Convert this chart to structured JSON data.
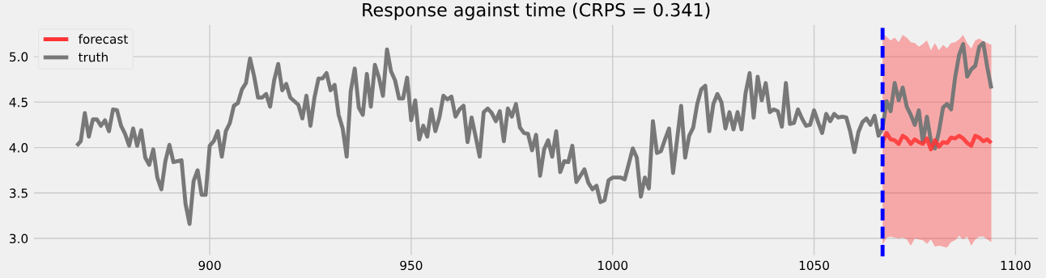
{
  "chart_data": {
    "type": "line",
    "title": "Response against time (CRPS = 0.341)",
    "series": [
      {
        "name": "forecast",
        "color": "#ff3333",
        "x": [
          1067,
          1068,
          1069,
          1070,
          1071,
          1072,
          1073,
          1074,
          1075,
          1076,
          1077,
          1078,
          1079,
          1080,
          1081,
          1082,
          1083,
          1084,
          1085,
          1086,
          1087,
          1088,
          1089,
          1090,
          1091,
          1092,
          1093,
          1094
        ],
        "values": [
          4.06,
          4.16,
          4.09,
          4.08,
          4.04,
          4.13,
          4.1,
          4.04,
          4.09,
          4.06,
          4.04,
          4.1,
          3.98,
          4.08,
          4.01,
          4.06,
          4.05,
          4.11,
          4.1,
          4.13,
          4.1,
          4.05,
          4.02,
          4.13,
          4.11,
          4.07,
          4.09,
          4.05
        ],
        "upper": [
          5.26,
          5.22,
          5.18,
          5.21,
          5.16,
          5.24,
          5.21,
          5.16,
          5.15,
          5.11,
          5.14,
          5.18,
          5.07,
          5.15,
          5.07,
          5.13,
          5.09,
          5.15,
          5.16,
          5.19,
          5.24,
          5.15,
          5.09,
          5.18,
          5.2,
          5.17,
          5.15,
          5.13
        ],
        "lower": [
          2.93,
          3.01,
          3.02,
          3.01,
          3.0,
          3.01,
          2.99,
          2.92,
          3.0,
          2.99,
          2.98,
          2.94,
          2.99,
          2.91,
          2.92,
          2.91,
          2.9,
          2.96,
          2.98,
          3.03,
          2.99,
          3.02,
          2.92,
          2.99,
          3.02,
          3.02,
          2.99,
          2.96
        ]
      },
      {
        "name": "truth",
        "color": "#787878",
        "x": [
          867,
          868,
          869,
          870,
          871,
          872,
          873,
          874,
          875,
          876,
          877,
          878,
          879,
          880,
          881,
          882,
          883,
          884,
          885,
          886,
          887,
          888,
          889,
          890,
          891,
          892,
          893,
          894,
          895,
          896,
          897,
          898,
          899,
          900,
          901,
          902,
          903,
          904,
          905,
          906,
          907,
          908,
          909,
          910,
          911,
          912,
          913,
          914,
          915,
          916,
          917,
          918,
          919,
          920,
          921,
          922,
          923,
          924,
          925,
          926,
          927,
          928,
          929,
          930,
          931,
          932,
          933,
          934,
          935,
          936,
          937,
          938,
          939,
          940,
          941,
          942,
          943,
          944,
          945,
          946,
          947,
          948,
          949,
          950,
          951,
          952,
          953,
          954,
          955,
          956,
          957,
          958,
          959,
          960,
          961,
          962,
          963,
          964,
          965,
          966,
          967,
          968,
          969,
          970,
          971,
          972,
          973,
          974,
          975,
          976,
          977,
          978,
          979,
          980,
          981,
          982,
          983,
          984,
          985,
          986,
          987,
          988,
          989,
          990,
          991,
          992,
          993,
          994,
          995,
          996,
          997,
          998,
          999,
          1000,
          1001,
          1002,
          1003,
          1004,
          1005,
          1006,
          1007,
          1008,
          1009,
          1010,
          1011,
          1012,
          1013,
          1014,
          1015,
          1016,
          1017,
          1018,
          1019,
          1020,
          1021,
          1022,
          1023,
          1024,
          1025,
          1026,
          1027,
          1028,
          1029,
          1030,
          1031,
          1032,
          1033,
          1034,
          1035,
          1036,
          1037,
          1038,
          1039,
          1040,
          1041,
          1042,
          1043,
          1044,
          1045,
          1046,
          1047,
          1048,
          1049,
          1050,
          1051,
          1052,
          1053,
          1054,
          1055,
          1056,
          1057,
          1058,
          1059,
          1060,
          1061,
          1062,
          1063,
          1064,
          1065,
          1066,
          1067,
          1068,
          1069,
          1070,
          1071,
          1072,
          1073,
          1074,
          1075,
          1076,
          1077,
          1078,
          1079,
          1080,
          1081,
          1082,
          1083,
          1084,
          1085,
          1086,
          1087,
          1088,
          1089,
          1090,
          1091,
          1092,
          1093,
          1094
        ],
        "values": [
          4.02,
          4.07,
          4.38,
          4.12,
          4.31,
          4.31,
          4.24,
          4.3,
          4.18,
          4.42,
          4.41,
          4.24,
          4.15,
          4.02,
          4.21,
          4.02,
          4.19,
          3.89,
          3.81,
          3.98,
          3.67,
          3.54,
          3.85,
          4.03,
          3.84,
          3.85,
          3.86,
          3.38,
          3.16,
          3.63,
          3.75,
          3.48,
          3.48,
          4.02,
          4.07,
          4.18,
          3.9,
          4.18,
          4.27,
          4.46,
          4.49,
          4.64,
          4.71,
          4.98,
          4.79,
          4.55,
          4.55,
          4.59,
          4.45,
          4.74,
          4.92,
          4.63,
          4.7,
          4.55,
          4.51,
          4.47,
          4.32,
          4.57,
          4.24,
          4.55,
          4.76,
          4.76,
          4.82,
          4.63,
          4.69,
          4.36,
          4.21,
          3.9,
          4.62,
          4.87,
          4.44,
          4.36,
          4.81,
          4.45,
          4.91,
          4.77,
          4.57,
          5.08,
          4.84,
          4.74,
          4.54,
          4.54,
          4.77,
          4.3,
          4.52,
          4.09,
          4.24,
          4.12,
          4.42,
          4.18,
          4.33,
          4.57,
          4.53,
          4.56,
          4.34,
          4.42,
          4.46,
          4.06,
          4.33,
          4.12,
          3.9,
          4.39,
          4.43,
          4.38,
          4.29,
          4.4,
          4.07,
          4.43,
          4.34,
          4.48,
          4.22,
          4.16,
          4.15,
          3.97,
          4.14,
          3.69,
          3.98,
          4.08,
          3.9,
          4.18,
          3.73,
          3.85,
          3.84,
          4.02,
          3.62,
          3.69,
          3.76,
          3.61,
          3.54,
          3.58,
          3.4,
          3.42,
          3.64,
          3.67,
          3.67,
          3.67,
          3.65,
          3.82,
          3.99,
          3.89,
          3.46,
          3.67,
          3.55,
          4.29,
          3.94,
          3.96,
          4.09,
          4.21,
          3.72,
          4.09,
          4.46,
          3.89,
          4.13,
          4.22,
          4.48,
          4.64,
          4.68,
          4.18,
          4.48,
          4.59,
          4.5,
          4.21,
          4.39,
          4.2,
          4.39,
          4.2,
          4.6,
          4.82,
          4.33,
          4.78,
          4.52,
          4.71,
          4.39,
          4.42,
          4.4,
          4.23,
          4.71,
          4.26,
          4.27,
          4.42,
          4.32,
          4.24,
          4.25,
          4.41,
          4.28,
          4.16,
          4.37,
          4.29,
          4.37,
          4.33,
          4.34,
          4.33,
          4.17,
          3.95,
          4.17,
          4.28,
          4.32,
          4.25,
          4.35,
          4.13,
          4.22,
          4.51,
          4.4,
          4.71,
          4.52,
          4.66,
          4.45,
          4.36,
          4.25,
          4.41,
          4.06,
          4.34,
          4.07,
          3.99,
          4.18,
          4.44,
          4.48,
          4.42,
          4.77,
          5.02,
          5.14,
          4.78,
          4.86,
          4.9,
          5.11,
          5.15,
          4.88,
          4.65
        ]
      }
    ],
    "ref_lines": [
      {
        "axis": "x",
        "value": 1067,
        "color": "#0000ff",
        "line_style": "dashed"
      }
    ],
    "xlim": [
      856,
      1106
    ],
    "xticks": [
      900,
      950,
      1000,
      1050,
      1100
    ],
    "ylim": [
      2.8,
      5.37
    ],
    "yticks": [
      {
        "value": 3,
        "label": "3.0"
      },
      {
        "value": 3.5,
        "label": "3.5"
      },
      {
        "value": 4,
        "label": "4.0"
      },
      {
        "value": 4.5,
        "label": "4.5"
      },
      {
        "value": 5,
        "label": "5.0"
      }
    ],
    "grid": true,
    "legend": "top left",
    "marker": "none",
    "line_style": "solid"
  }
}
